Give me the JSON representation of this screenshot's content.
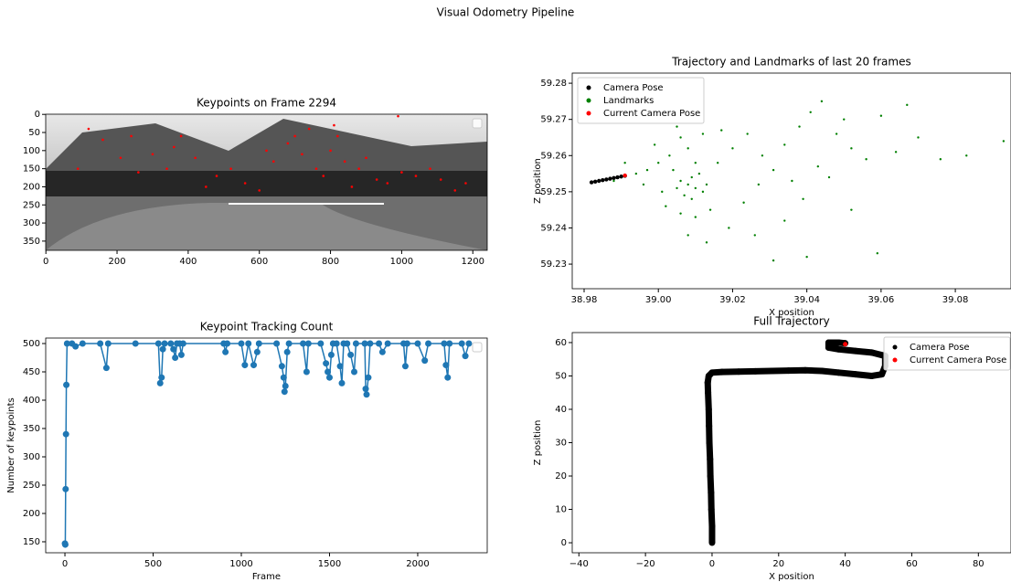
{
  "title": "Visual Odometry Pipeline",
  "chart_data": [
    {
      "type": "image",
      "title": "Keypoints on Frame 2294",
      "xlim": [
        -0.5,
        1240.5
      ],
      "ylim": [
        375.5,
        -0.5
      ],
      "xticks": [
        0,
        200,
        400,
        600,
        800,
        1000,
        1200
      ],
      "yticks": [
        0,
        50,
        100,
        150,
        200,
        250,
        300,
        350
      ],
      "legend": "upper right",
      "series": [
        {
          "color": "red",
          "x": [
            120,
            160,
            210,
            260,
            300,
            340,
            360,
            380,
            420,
            450,
            480,
            520,
            560,
            600,
            640,
            680,
            700,
            720,
            740,
            760,
            780,
            800,
            820,
            840,
            860,
            880,
            900,
            930,
            960,
            1000,
            1040,
            1080,
            1110,
            1150,
            1180,
            90,
            240,
            620,
            810,
            990
          ],
          "values": [
            40,
            70,
            120,
            160,
            110,
            150,
            90,
            60,
            120,
            200,
            170,
            150,
            190,
            210,
            130,
            80,
            60,
            110,
            40,
            150,
            170,
            100,
            60,
            130,
            200,
            150,
            120,
            180,
            190,
            160,
            170,
            150,
            180,
            210,
            190,
            150,
            60,
            100,
            30,
            5
          ]
        }
      ]
    },
    {
      "type": "scatter",
      "title": "Trajectory and Landmarks of last 20 frames",
      "xlabel": "X position",
      "ylabel": "Z position",
      "xlim": [
        38.9768,
        39.095
      ],
      "ylim": [
        59.2232,
        59.2828
      ],
      "xticks": [
        38.98,
        {
          "value": 39,
          "label": "39.00"
        },
        39.02,
        39.04,
        39.06,
        39.08
      ],
      "yticks": [
        59.23,
        59.24,
        59.25,
        59.26,
        59.27,
        59.28
      ],
      "legend": "upper left",
      "series": [
        {
          "name": "Camera Pose",
          "color": "black",
          "size": 2.2,
          "x": [
            38.982,
            38.983,
            38.984,
            38.985,
            38.986,
            38.987,
            38.988,
            38.989,
            38.99,
            38.991
          ],
          "values": [
            59.2526,
            59.2528,
            59.253,
            59.2532,
            59.2534,
            59.2536,
            59.2538,
            59.254,
            59.2542,
            59.2544
          ]
        },
        {
          "name": "Landmarks",
          "color": "green",
          "size": 1.2,
          "x": [
            39.008,
            39.01,
            39.006,
            39.012,
            39.009,
            39.007,
            39.011,
            39.005,
            39.013,
            39.009,
            39.004,
            39.01,
            39.008,
            39.006,
            39.012,
            39.003,
            39,
            38.997,
            38.994,
            38.996,
            39.001,
            39.002,
            39.006,
            39.01,
            39.014,
            39.016,
            39.02,
            39.024,
            39.028,
            39.031,
            39.034,
            39.038,
            39.041,
            39.044,
            39.048,
            39.052,
            39.056,
            39.06,
            39.067,
            39.07,
            39.076,
            39.083,
            39.093,
            39.059,
            39.04,
            39.031,
            39.034,
            39.019,
            39.023,
            39.027,
            39.039,
            39.046,
            39.052,
            38.991,
            38.988,
            38.999,
            39.005,
            39.017,
            39.043,
            39.036,
            39.05,
            39.064,
            39.026,
            39.008,
            39.013
          ],
          "values": [
            59.252,
            59.251,
            59.253,
            59.25,
            59.254,
            59.249,
            59.255,
            59.251,
            59.252,
            59.248,
            59.256,
            59.258,
            59.262,
            59.265,
            59.266,
            59.26,
            59.258,
            59.256,
            59.255,
            59.252,
            59.25,
            59.246,
            59.244,
            59.243,
            59.245,
            59.258,
            59.262,
            59.266,
            59.26,
            59.256,
            59.263,
            59.268,
            59.272,
            59.275,
            59.266,
            59.262,
            59.259,
            59.271,
            59.274,
            59.265,
            59.259,
            59.26,
            59.264,
            59.233,
            59.232,
            59.231,
            59.242,
            59.24,
            59.247,
            59.252,
            59.248,
            59.254,
            59.245,
            59.258,
            59.253,
            59.263,
            59.268,
            59.267,
            59.257,
            59.253,
            59.27,
            59.261,
            59.238,
            59.238,
            59.236
          ]
        },
        {
          "name": "Current Camera Pose",
          "color": "red",
          "size": 2.2,
          "x": [
            38.991
          ],
          "values": [
            59.2545
          ]
        }
      ]
    },
    {
      "type": "line",
      "title": "Keypoint Tracking Count",
      "xlabel": "Frame",
      "ylabel": "Number of keypoints",
      "xlim": [
        -109,
        2394
      ],
      "ylim": [
        130.6,
        509.7
      ],
      "xticks": [
        0,
        500,
        1000,
        1500,
        2000
      ],
      "yticks": [
        150,
        200,
        250,
        300,
        350,
        400,
        450,
        500
      ],
      "legend": "upper right",
      "series": [
        {
          "color": "#1f77b4",
          "x": [
            0,
            2,
            4,
            6,
            8,
            12,
            40,
            60,
            100,
            200,
            235,
            245,
            400,
            530,
            540,
            548,
            555,
            565,
            600,
            615,
            625,
            635,
            650,
            660,
            670,
            900,
            910,
            920,
            1000,
            1020,
            1040,
            1070,
            1090,
            1100,
            1200,
            1230,
            1240,
            1245,
            1250,
            1260,
            1270,
            1350,
            1370,
            1380,
            1450,
            1480,
            1490,
            1500,
            1510,
            1520,
            1540,
            1560,
            1570,
            1580,
            1600,
            1620,
            1640,
            1650,
            1700,
            1705,
            1710,
            1720,
            1730,
            1780,
            1800,
            1830,
            1920,
            1930,
            1940,
            2000,
            2040,
            2060,
            2150,
            2160,
            2170,
            2180,
            2250,
            2270,
            2290
          ],
          "values": [
            147,
            145,
            243,
            340,
            427,
            500,
            500,
            495,
            500,
            500,
            457,
            500,
            500,
            500,
            430,
            440,
            490,
            500,
            500,
            490,
            475,
            500,
            500,
            480,
            500,
            500,
            485,
            500,
            500,
            462,
            500,
            462,
            485,
            500,
            500,
            460,
            440,
            415,
            425,
            485,
            500,
            500,
            450,
            500,
            500,
            465,
            450,
            440,
            480,
            500,
            500,
            460,
            430,
            500,
            500,
            480,
            450,
            500,
            500,
            420,
            410,
            440,
            500,
            500,
            485,
            500,
            500,
            460,
            500,
            500,
            470,
            500,
            500,
            462,
            440,
            500,
            500,
            478,
            500
          ]
        }
      ]
    },
    {
      "type": "scatter",
      "title": "Full Trajectory",
      "xlabel": "X position",
      "ylabel": "Z position",
      "xlim": [
        -42,
        89.8
      ],
      "ylim": [
        -3,
        63
      ],
      "xticks": [
        {
          "value": -40,
          "label": "−40"
        },
        {
          "value": -20,
          "label": "−20"
        },
        0,
        20,
        40,
        60,
        80
      ],
      "yticks": [
        0,
        10,
        20,
        30,
        40,
        50,
        60
      ],
      "legend": "upper right",
      "connect": true,
      "series": [
        {
          "name": "Camera Pose",
          "color": "black",
          "size": 3.5,
          "x": [
            0,
            0,
            -0.2,
            -0.3,
            -0.5,
            -0.6,
            -0.8,
            -0.9,
            -1,
            -1.2,
            -1.3,
            -1,
            0,
            3,
            8,
            13,
            18,
            23,
            28,
            33,
            38,
            43,
            48,
            51,
            52,
            52,
            48,
            43,
            38,
            35,
            35,
            38,
            40
          ],
          "values": [
            0,
            5,
            10,
            15,
            20,
            25,
            30,
            35,
            40,
            45,
            48,
            50,
            51,
            51.2,
            51.3,
            51.4,
            51.5,
            51.6,
            51.7,
            51.5,
            51,
            50.5,
            50,
            50.5,
            53,
            56,
            57,
            57.5,
            58,
            58.5,
            60,
            60,
            59.8
          ]
        },
        {
          "name": "Current Camera Pose",
          "color": "red",
          "size": 2.5,
          "x": [
            40
          ],
          "values": [
            59.5
          ]
        }
      ]
    }
  ]
}
